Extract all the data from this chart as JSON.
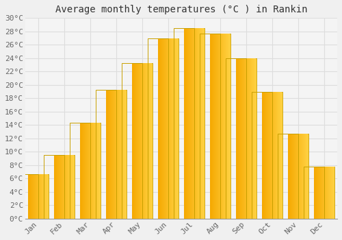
{
  "title": "Average monthly temperatures (°C ) in Rankin",
  "months": [
    "Jan",
    "Feb",
    "Mar",
    "Apr",
    "May",
    "Jun",
    "Jul",
    "Aug",
    "Sep",
    "Oct",
    "Nov",
    "Dec"
  ],
  "values": [
    6.7,
    9.5,
    14.3,
    19.3,
    23.3,
    27.0,
    28.5,
    27.7,
    24.0,
    19.0,
    12.7,
    7.8
  ],
  "bar_color_left": "#F5A800",
  "bar_color_right": "#FFD040",
  "bar_edge_color": "#C8A000",
  "background_color": "#F0F0F0",
  "plot_bg_color": "#F4F4F4",
  "grid_color": "#DDDDDD",
  "ylim": [
    0,
    30
  ],
  "ytick_step": 2,
  "title_fontsize": 10,
  "tick_fontsize": 8,
  "font_family": "monospace",
  "bar_width": 0.78
}
